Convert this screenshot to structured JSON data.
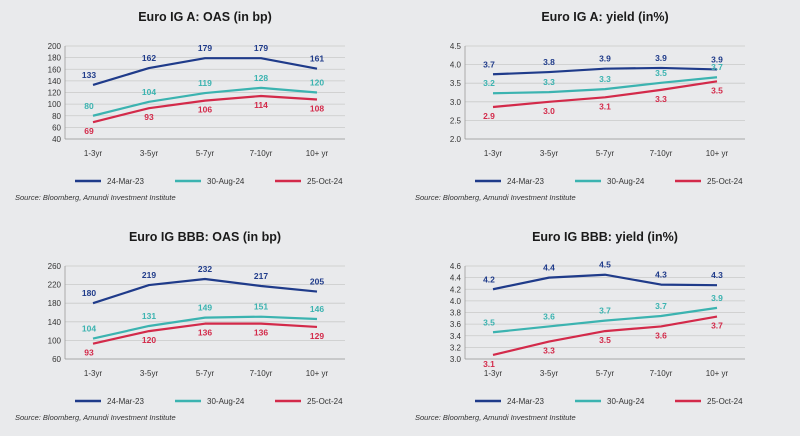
{
  "colors": {
    "s1": "#1f3b8a",
    "s2": "#3bb3b0",
    "s3": "#d32a4a",
    "grid": "#c9c9c9",
    "axis": "#9a9a9a"
  },
  "chart_data": [
    {
      "type": "line",
      "title": "Euro IG A: OAS (in bp)",
      "categories": [
        "1-3yr",
        "3-5yr",
        "5-7yr",
        "7-10yr",
        "10+ yr"
      ],
      "ylim": [
        40,
        200
      ],
      "yticks": [
        "40",
        "60",
        "80",
        "100",
        "120",
        "140",
        "160",
        "180",
        "200"
      ],
      "series": [
        {
          "name": "24-Mar-23",
          "values": [
            133,
            162,
            179,
            179,
            161
          ],
          "labels": [
            "133",
            "162",
            "179",
            "179",
            "161"
          ]
        },
        {
          "name": "30-Aug-24",
          "values": [
            80,
            104,
            119,
            128,
            120
          ],
          "labels": [
            "80",
            "104",
            "119",
            "128",
            "120"
          ]
        },
        {
          "name": "25-Oct-24",
          "values": [
            69,
            93,
            106,
            114,
            108
          ],
          "labels": [
            "69",
            "93",
            "106",
            "114",
            "108"
          ]
        }
      ],
      "source": "Source: Bloomberg, Amundi Investment Institute"
    },
    {
      "type": "line",
      "title": "Euro IG A: yield (in%)",
      "categories": [
        "1-3yr",
        "3-5yr",
        "5-7yr",
        "7-10yr",
        "10+ yr"
      ],
      "ylim": [
        2.0,
        4.5
      ],
      "yticks": [
        "2.0",
        "2.5",
        "3.0",
        "3.5",
        "4.0",
        "4.5"
      ],
      "series": [
        {
          "name": "24-Mar-23",
          "values": [
            3.74,
            3.8,
            3.89,
            3.91,
            3.87
          ],
          "labels": [
            "3.7",
            "3.8",
            "3.9",
            "3.9",
            "3.9"
          ]
        },
        {
          "name": "30-Aug-24",
          "values": [
            3.23,
            3.26,
            3.34,
            3.51,
            3.66
          ],
          "labels": [
            "3.2",
            "3.3",
            "3.3",
            "3.5",
            "3.7"
          ]
        },
        {
          "name": "25-Oct-24",
          "values": [
            2.86,
            3.0,
            3.12,
            3.32,
            3.55
          ],
          "labels": [
            "2.9",
            "3.0",
            "3.1",
            "3.3",
            "3.5"
          ]
        }
      ],
      "source": "Source: Bloomberg, Amundi Investment Institute"
    },
    {
      "type": "line",
      "title": "Euro IG BBB: OAS (in bp)",
      "categories": [
        "1-3yr",
        "3-5yr",
        "5-7yr",
        "7-10yr",
        "10+ yr"
      ],
      "ylim": [
        60,
        260
      ],
      "yticks": [
        "60",
        "100",
        "140",
        "180",
        "220",
        "260"
      ],
      "series": [
        {
          "name": "24-Mar-23",
          "values": [
            180,
            219,
            232,
            217,
            205
          ],
          "labels": [
            "180",
            "219",
            "232",
            "217",
            "205"
          ]
        },
        {
          "name": "30-Aug-24",
          "values": [
            104,
            131,
            149,
            151,
            146
          ],
          "labels": [
            "104",
            "131",
            "149",
            "151",
            "146"
          ]
        },
        {
          "name": "25-Oct-24",
          "values": [
            93,
            120,
            136,
            136,
            129
          ],
          "labels": [
            "93",
            "120",
            "136",
            "136",
            "129"
          ]
        }
      ],
      "source": "Source: Bloomberg, Amundi Investment Institute"
    },
    {
      "type": "line",
      "title": "Euro IG BBB: yield (in%)",
      "categories": [
        "1-3yr",
        "3-5yr",
        "5-7yr",
        "7-10yr",
        "10+ yr"
      ],
      "ylim": [
        3.0,
        4.6
      ],
      "yticks": [
        "3.0",
        "3.2",
        "3.4",
        "3.6",
        "3.8",
        "4.0",
        "4.2",
        "4.4",
        "4.6"
      ],
      "series": [
        {
          "name": "24-Mar-23",
          "values": [
            4.2,
            4.4,
            4.45,
            4.28,
            4.27
          ],
          "labels": [
            "4.2",
            "4.4",
            "4.5",
            "4.3",
            "4.3"
          ]
        },
        {
          "name": "30-Aug-24",
          "values": [
            3.46,
            3.56,
            3.66,
            3.74,
            3.88
          ],
          "labels": [
            "3.5",
            "3.6",
            "3.7",
            "3.7",
            "3.9"
          ]
        },
        {
          "name": "25-Oct-24",
          "values": [
            3.07,
            3.3,
            3.48,
            3.56,
            3.73
          ],
          "labels": [
            "3.1",
            "3.3",
            "3.5",
            "3.6",
            "3.7"
          ]
        }
      ],
      "source": "Source: Bloomberg, Amundi Investment Institute"
    }
  ]
}
